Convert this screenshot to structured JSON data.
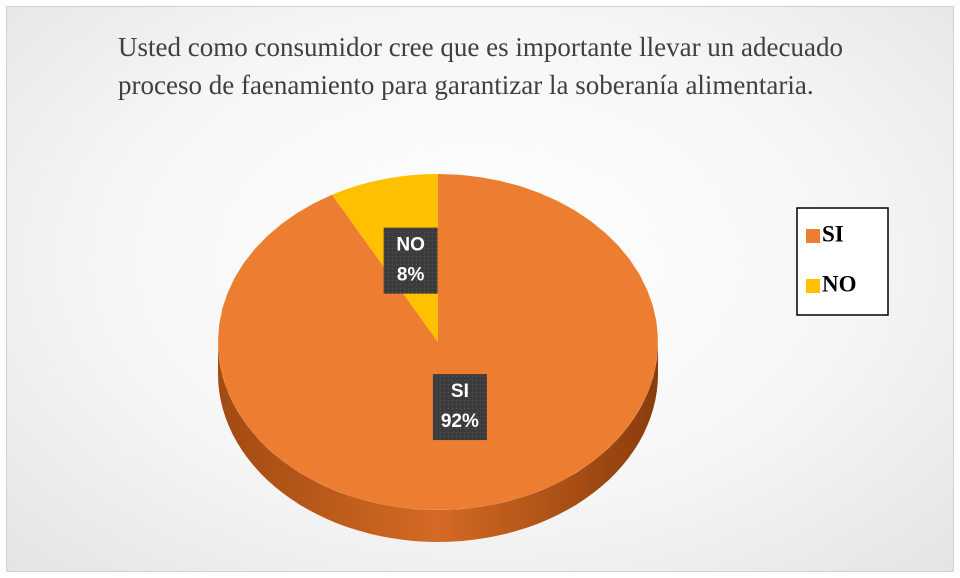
{
  "chart_data": {
    "type": "pie",
    "title": "Usted como consumidor cree que es importante llevar un adecuado proceso de faenamiento para garantizar la soberanía alimentaria.",
    "categories": [
      "SI",
      "NO"
    ],
    "values": [
      92,
      8
    ],
    "value_labels": [
      "92%",
      "8%"
    ],
    "colors": [
      "#ED7D31",
      "#FFC000"
    ],
    "legend": "right"
  }
}
